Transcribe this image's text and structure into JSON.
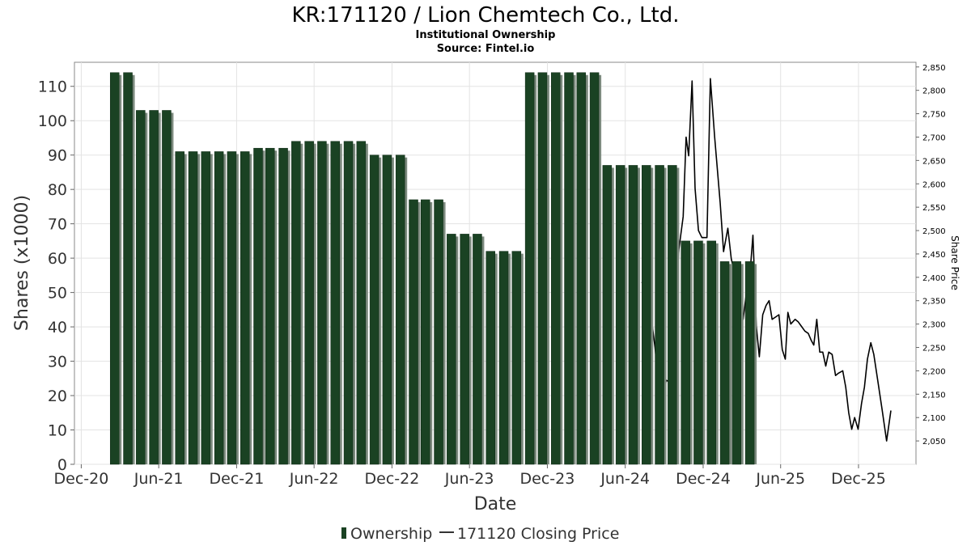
{
  "chart_data": {
    "type": "bar",
    "title": "KR:171120 / Lion Chemtech Co., Ltd.",
    "subtitle": "Institutional Ownership",
    "source": "Source: Fintel.io",
    "xlabel": "Date",
    "ylabel": "Shares (x1000)",
    "y2label": "Share Price",
    "ylim": [
      0,
      117
    ],
    "y2lim": [
      2000,
      2860
    ],
    "yticks": [
      "0",
      "10",
      "20",
      "30",
      "40",
      "50",
      "60",
      "70",
      "80",
      "90",
      "100",
      "110"
    ],
    "y2ticks": [
      "2,050",
      "2,100",
      "2,150",
      "2,200",
      "2,250",
      "2,300",
      "2,350",
      "2,400",
      "2,450",
      "2,500",
      "2,550",
      "2,600",
      "2,650",
      "2,700",
      "2,750",
      "2,800",
      "2,850"
    ],
    "xticks": [
      "Dec-20",
      "Jun-21",
      "Dec-21",
      "Jun-22",
      "Dec-22",
      "Jun-23",
      "Dec-23",
      "Jun-24",
      "Dec-24",
      "Jun-25",
      "Dec-25"
    ],
    "xrange": [
      "2020-11-15",
      "2026-04-15"
    ],
    "grid": true,
    "legend_position": "bottom",
    "series": [
      {
        "name": "Ownership",
        "type": "bar",
        "color": "#1a4223",
        "points": [
          {
            "date": "2021-02-28",
            "value": 114
          },
          {
            "date": "2021-03-31",
            "value": 114
          },
          {
            "date": "2021-04-30",
            "value": 103
          },
          {
            "date": "2021-05-31",
            "value": 103
          },
          {
            "date": "2021-06-30",
            "value": 103
          },
          {
            "date": "2021-07-31",
            "value": 91
          },
          {
            "date": "2021-08-31",
            "value": 91
          },
          {
            "date": "2021-09-30",
            "value": 91
          },
          {
            "date": "2021-10-31",
            "value": 91
          },
          {
            "date": "2021-11-30",
            "value": 91
          },
          {
            "date": "2021-12-31",
            "value": 91
          },
          {
            "date": "2022-01-31",
            "value": 92
          },
          {
            "date": "2022-02-28",
            "value": 92
          },
          {
            "date": "2022-03-31",
            "value": 92
          },
          {
            "date": "2022-04-30",
            "value": 94
          },
          {
            "date": "2022-05-31",
            "value": 94
          },
          {
            "date": "2022-06-30",
            "value": 94
          },
          {
            "date": "2022-07-31",
            "value": 94
          },
          {
            "date": "2022-08-31",
            "value": 94
          },
          {
            "date": "2022-09-30",
            "value": 94
          },
          {
            "date": "2022-10-31",
            "value": 90
          },
          {
            "date": "2022-11-30",
            "value": 90
          },
          {
            "date": "2022-12-31",
            "value": 90
          },
          {
            "date": "2023-01-31",
            "value": 77
          },
          {
            "date": "2023-02-28",
            "value": 77
          },
          {
            "date": "2023-03-31",
            "value": 77
          },
          {
            "date": "2023-04-30",
            "value": 67
          },
          {
            "date": "2023-05-31",
            "value": 67
          },
          {
            "date": "2023-06-30",
            "value": 67
          },
          {
            "date": "2023-07-31",
            "value": 62
          },
          {
            "date": "2023-08-31",
            "value": 62
          },
          {
            "date": "2023-09-30",
            "value": 62
          },
          {
            "date": "2023-10-31",
            "value": 114
          },
          {
            "date": "2023-11-30",
            "value": 114
          },
          {
            "date": "2023-12-31",
            "value": 114
          },
          {
            "date": "2024-01-31",
            "value": 114
          },
          {
            "date": "2024-02-29",
            "value": 114
          },
          {
            "date": "2024-03-31",
            "value": 114
          },
          {
            "date": "2024-04-30",
            "value": 87
          },
          {
            "date": "2024-05-31",
            "value": 87
          },
          {
            "date": "2024-06-30",
            "value": 87
          },
          {
            "date": "2024-07-31",
            "value": 87
          },
          {
            "date": "2024-08-31",
            "value": 87
          },
          {
            "date": "2024-09-30",
            "value": 87
          },
          {
            "date": "2024-10-31",
            "value": 65
          },
          {
            "date": "2024-11-30",
            "value": 65
          },
          {
            "date": "2024-12-31",
            "value": 65
          },
          {
            "date": "2025-01-31",
            "value": 59
          },
          {
            "date": "2025-02-28",
            "value": 59
          },
          {
            "date": "2025-03-31",
            "value": 59
          }
        ]
      },
      {
        "name": "171120 Closing Price",
        "type": "line",
        "color": "#000000",
        "points": [
          {
            "date": "2024-07-10",
            "value": 2390
          },
          {
            "date": "2024-07-25",
            "value": 2365
          },
          {
            "date": "2024-08-10",
            "value": 2250
          },
          {
            "date": "2024-08-25",
            "value": 2100
          },
          {
            "date": "2024-09-05",
            "value": 2180
          },
          {
            "date": "2024-09-15",
            "value": 2175
          },
          {
            "date": "2024-10-05",
            "value": 2460
          },
          {
            "date": "2024-10-15",
            "value": 2530
          },
          {
            "date": "2024-10-22",
            "value": 2700
          },
          {
            "date": "2024-10-28",
            "value": 2660
          },
          {
            "date": "2024-11-05",
            "value": 2820
          },
          {
            "date": "2024-11-12",
            "value": 2590
          },
          {
            "date": "2024-11-20",
            "value": 2500
          },
          {
            "date": "2024-11-28",
            "value": 2485
          },
          {
            "date": "2024-12-10",
            "value": 2485
          },
          {
            "date": "2024-12-18",
            "value": 2825
          },
          {
            "date": "2024-12-28",
            "value": 2700
          },
          {
            "date": "2025-01-10",
            "value": 2560
          },
          {
            "date": "2025-01-18",
            "value": 2455
          },
          {
            "date": "2025-01-28",
            "value": 2505
          },
          {
            "date": "2025-02-05",
            "value": 2440
          },
          {
            "date": "2025-02-15",
            "value": 2400
          },
          {
            "date": "2025-02-25",
            "value": 2380
          },
          {
            "date": "2025-03-05",
            "value": 2310
          },
          {
            "date": "2025-03-15",
            "value": 2385
          },
          {
            "date": "2025-03-22",
            "value": 2420
          },
          {
            "date": "2025-03-28",
            "value": 2490
          },
          {
            "date": "2025-04-05",
            "value": 2295
          },
          {
            "date": "2025-04-12",
            "value": 2230
          },
          {
            "date": "2025-04-20",
            "value": 2320
          },
          {
            "date": "2025-04-28",
            "value": 2340
          },
          {
            "date": "2025-05-05",
            "value": 2350
          },
          {
            "date": "2025-05-12",
            "value": 2310
          },
          {
            "date": "2025-05-20",
            "value": 2315
          },
          {
            "date": "2025-05-28",
            "value": 2320
          },
          {
            "date": "2025-06-05",
            "value": 2245
          },
          {
            "date": "2025-06-12",
            "value": 2225
          },
          {
            "date": "2025-06-18",
            "value": 2325
          },
          {
            "date": "2025-06-25",
            "value": 2300
          },
          {
            "date": "2025-07-05",
            "value": 2310
          },
          {
            "date": "2025-07-12",
            "value": 2305
          },
          {
            "date": "2025-07-20",
            "value": 2295
          },
          {
            "date": "2025-07-28",
            "value": 2285
          },
          {
            "date": "2025-08-05",
            "value": 2280
          },
          {
            "date": "2025-08-12",
            "value": 2265
          },
          {
            "date": "2025-08-18",
            "value": 2255
          },
          {
            "date": "2025-08-25",
            "value": 2310
          },
          {
            "date": "2025-09-01",
            "value": 2240
          },
          {
            "date": "2025-09-08",
            "value": 2240
          },
          {
            "date": "2025-09-15",
            "value": 2210
          },
          {
            "date": "2025-09-22",
            "value": 2240
          },
          {
            "date": "2025-09-30",
            "value": 2235
          },
          {
            "date": "2025-10-08",
            "value": 2190
          },
          {
            "date": "2025-10-15",
            "value": 2195
          },
          {
            "date": "2025-10-25",
            "value": 2200
          },
          {
            "date": "2025-11-01",
            "value": 2165
          },
          {
            "date": "2025-11-08",
            "value": 2110
          },
          {
            "date": "2025-11-15",
            "value": 2075
          },
          {
            "date": "2025-11-22",
            "value": 2100
          },
          {
            "date": "2025-11-30",
            "value": 2075
          },
          {
            "date": "2025-12-08",
            "value": 2130
          },
          {
            "date": "2025-12-15",
            "value": 2165
          },
          {
            "date": "2025-12-22",
            "value": 2225
          },
          {
            "date": "2025-12-30",
            "value": 2260
          },
          {
            "date": "2026-01-06",
            "value": 2235
          },
          {
            "date": "2026-01-15",
            "value": 2180
          },
          {
            "date": "2026-01-25",
            "value": 2120
          },
          {
            "date": "2026-02-05",
            "value": 2050
          },
          {
            "date": "2026-02-15",
            "value": 2115
          }
        ]
      }
    ]
  }
}
